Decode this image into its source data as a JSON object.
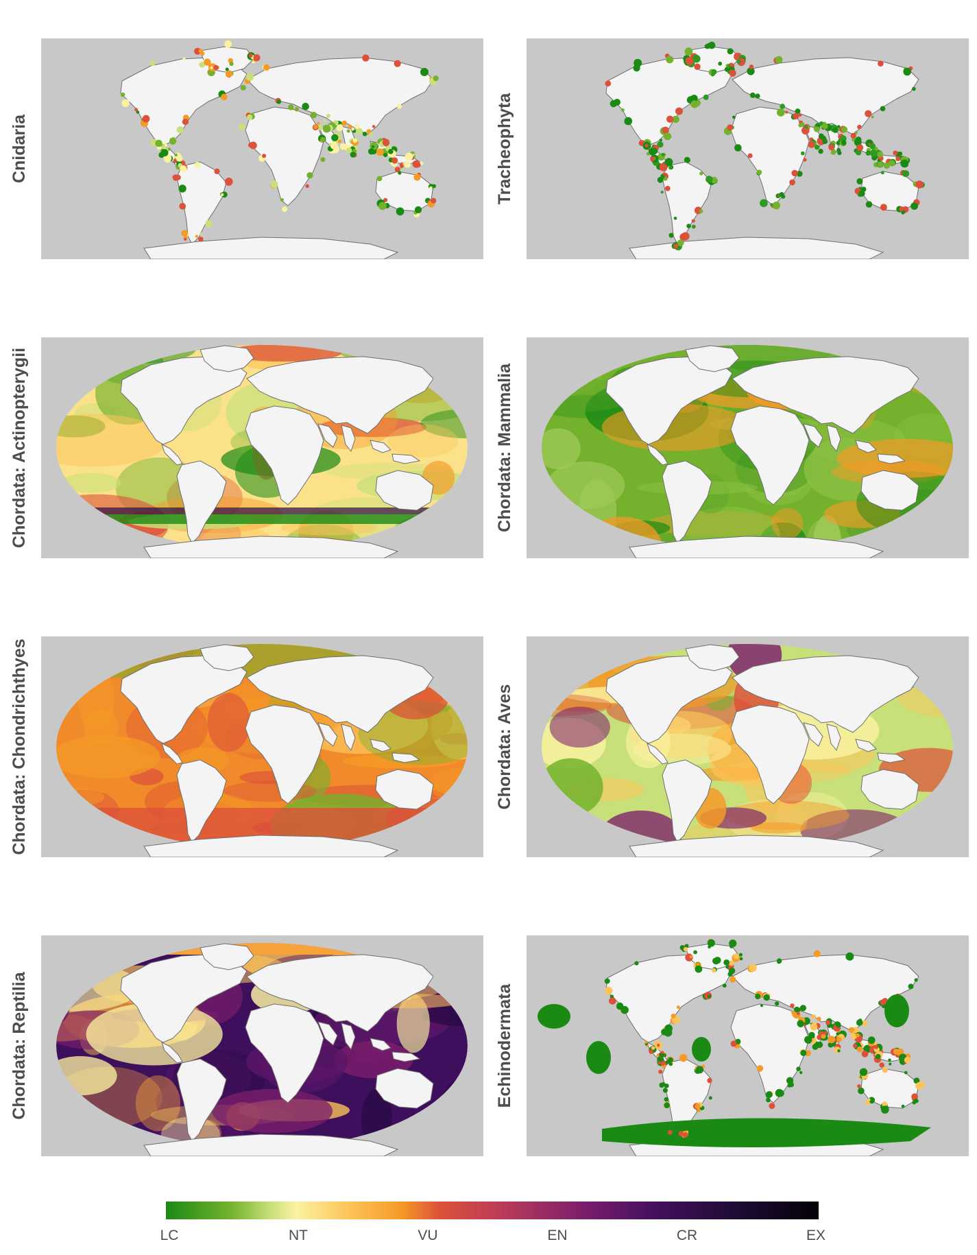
{
  "panels": [
    {
      "label": "Cnidaria",
      "style": "sparse-coastal"
    },
    {
      "label": "Tracheophyta",
      "style": "coastal-green"
    },
    {
      "label": "Chordata: Actinopterygii",
      "style": "ocean-mixed"
    },
    {
      "label": "Chordata: Mammalia",
      "style": "ocean-green"
    },
    {
      "label": "Chordata: Chondrichthyes",
      "style": "ocean-orange"
    },
    {
      "label": "Chordata: Aves",
      "style": "ocean-yellow"
    },
    {
      "label": "Chordata: Reptilia",
      "style": "ocean-purple"
    },
    {
      "label": "Echinodermata",
      "style": "echinoderm"
    }
  ],
  "legend": {
    "labels": [
      "LC",
      "NT",
      "VU",
      "EN",
      "CR",
      "EX"
    ],
    "colors": [
      "#1a8a15",
      "#fbf2a1",
      "#f59a27",
      "#b73a5a",
      "#47105f",
      "#030107"
    ]
  },
  "colors": {
    "map_background": "#c8c8c8",
    "land": "#f4f4f4",
    "coast_stroke": "#6e6e6e"
  }
}
